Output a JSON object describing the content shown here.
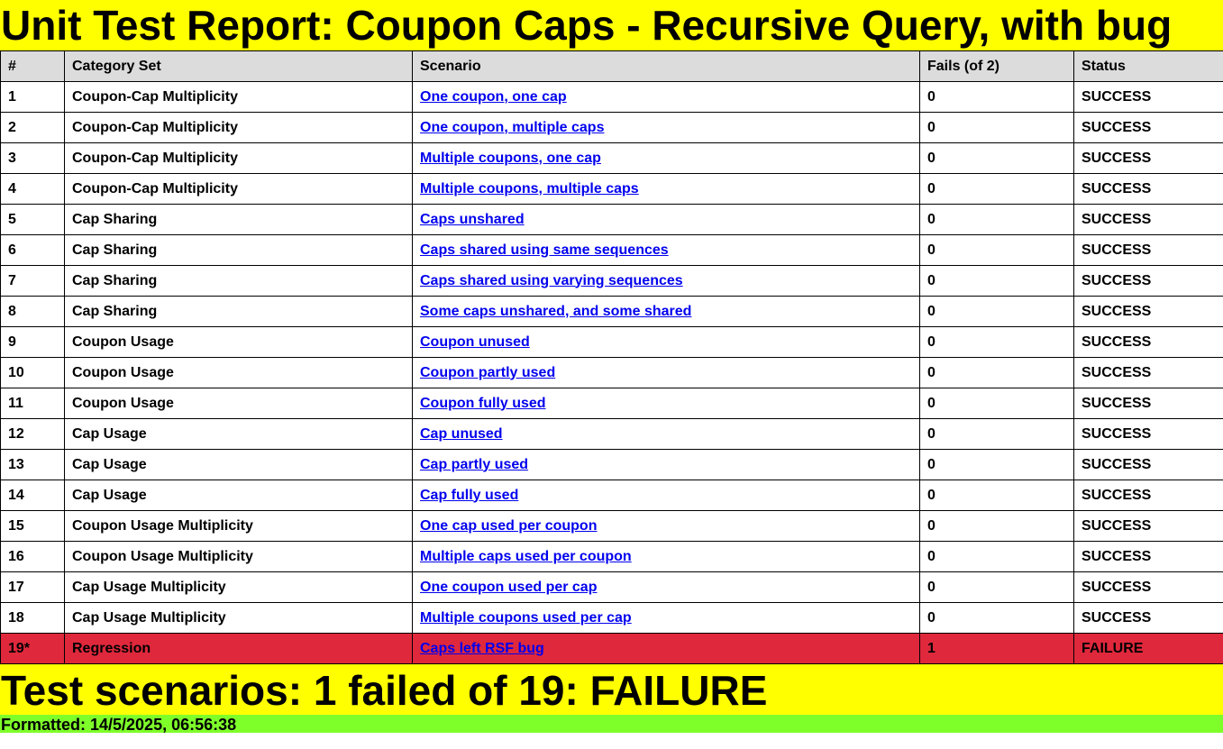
{
  "title": "Unit Test Report: Coupon Caps - Recursive Query, with bug",
  "table": {
    "headers": [
      "#",
      "Category Set",
      "Scenario",
      "Fails (of 2)",
      "Status"
    ],
    "rows": [
      {
        "num": "1",
        "category": "Coupon-Cap Multiplicity",
        "scenario": "One coupon, one cap",
        "fails": "0",
        "status": "SUCCESS"
      },
      {
        "num": "2",
        "category": "Coupon-Cap Multiplicity",
        "scenario": "One coupon, multiple caps",
        "fails": "0",
        "status": "SUCCESS"
      },
      {
        "num": "3",
        "category": "Coupon-Cap Multiplicity",
        "scenario": "Multiple coupons, one cap",
        "fails": "0",
        "status": "SUCCESS"
      },
      {
        "num": "4",
        "category": "Coupon-Cap Multiplicity",
        "scenario": "Multiple coupons, multiple caps",
        "fails": "0",
        "status": "SUCCESS"
      },
      {
        "num": "5",
        "category": "Cap Sharing",
        "scenario": "Caps unshared",
        "fails": "0",
        "status": "SUCCESS"
      },
      {
        "num": "6",
        "category": "Cap Sharing",
        "scenario": "Caps shared using same sequences",
        "fails": "0",
        "status": "SUCCESS"
      },
      {
        "num": "7",
        "category": "Cap Sharing",
        "scenario": "Caps shared using varying sequences",
        "fails": "0",
        "status": "SUCCESS"
      },
      {
        "num": "8",
        "category": "Cap Sharing",
        "scenario": "Some caps unshared, and some shared",
        "fails": "0",
        "status": "SUCCESS"
      },
      {
        "num": "9",
        "category": "Coupon Usage",
        "scenario": "Coupon unused",
        "fails": "0",
        "status": "SUCCESS"
      },
      {
        "num": "10",
        "category": "Coupon Usage",
        "scenario": "Coupon partly used",
        "fails": "0",
        "status": "SUCCESS"
      },
      {
        "num": "11",
        "category": "Coupon Usage",
        "scenario": "Coupon fully used",
        "fails": "0",
        "status": "SUCCESS"
      },
      {
        "num": "12",
        "category": "Cap Usage",
        "scenario": "Cap unused",
        "fails": "0",
        "status": "SUCCESS"
      },
      {
        "num": "13",
        "category": "Cap Usage",
        "scenario": "Cap partly used",
        "fails": "0",
        "status": "SUCCESS"
      },
      {
        "num": "14",
        "category": "Cap Usage",
        "scenario": "Cap fully used",
        "fails": "0",
        "status": "SUCCESS"
      },
      {
        "num": "15",
        "category": "Coupon Usage Multiplicity",
        "scenario": "One cap used per coupon",
        "fails": "0",
        "status": "SUCCESS"
      },
      {
        "num": "16",
        "category": "Coupon Usage Multiplicity",
        "scenario": "Multiple caps used per coupon",
        "fails": "0",
        "status": "SUCCESS"
      },
      {
        "num": "17",
        "category": "Cap Usage Multiplicity",
        "scenario": "One coupon used per cap",
        "fails": "0",
        "status": "SUCCESS"
      },
      {
        "num": "18",
        "category": "Cap Usage Multiplicity",
        "scenario": "Multiple coupons used per cap",
        "fails": "0",
        "status": "SUCCESS"
      },
      {
        "num": "19*",
        "category": "Regression",
        "scenario": "Caps left RSF bug",
        "fails": "1",
        "status": "FAILURE",
        "failed": true
      }
    ]
  },
  "summary": "Test scenarios: 1 failed of 19: FAILURE",
  "formatted": "Formatted: 14/5/2025, 06:56:38",
  "colors": {
    "title_bg": "#ffff00",
    "header_bg": "#dcdcdc",
    "failure_row_bg": "#e0283c",
    "formatted_bg": "#7fff2a",
    "link": "#0000ee"
  }
}
